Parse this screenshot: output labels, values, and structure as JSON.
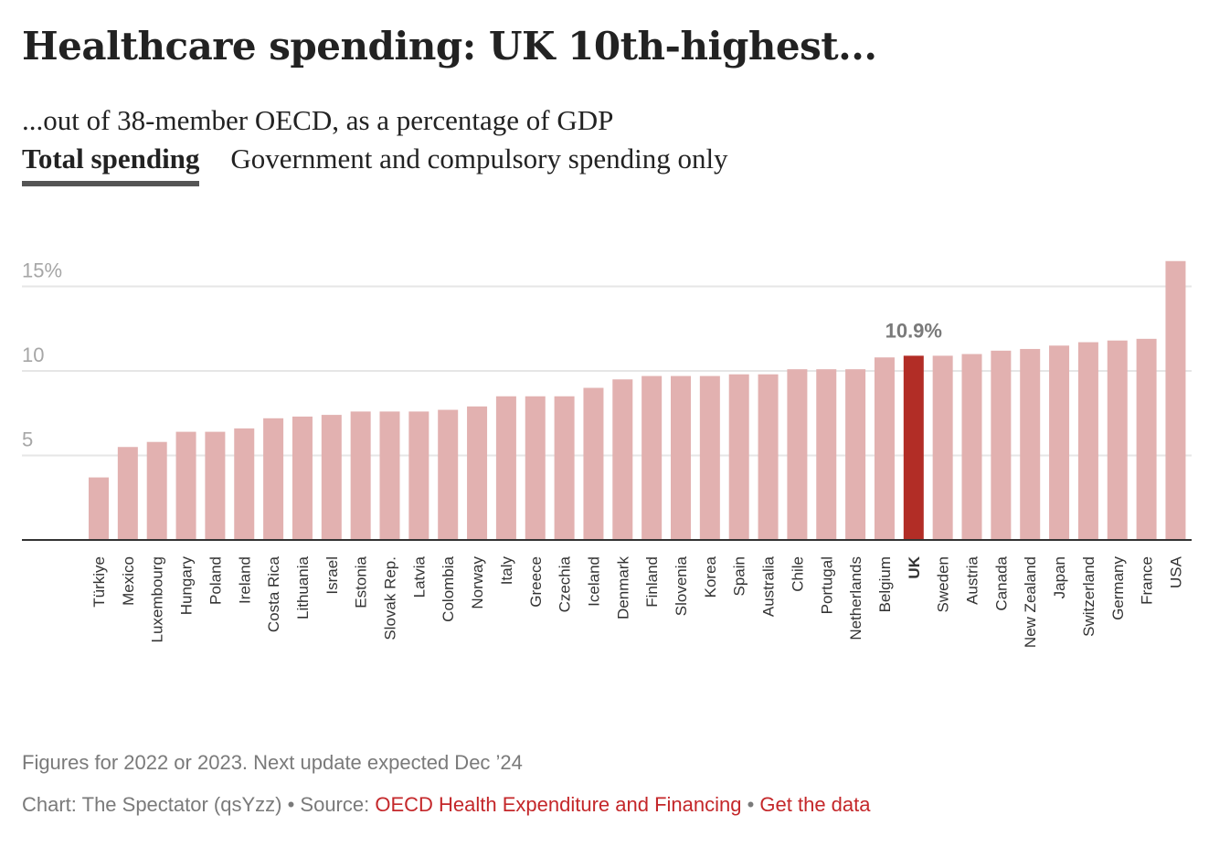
{
  "header": {
    "title": "Healthcare spending: UK 10th-highest...",
    "subtitle": "...out of 38-member OECD, as a percentage of GDP"
  },
  "tabs": [
    {
      "label": "Total spending",
      "active": true
    },
    {
      "label": "Government and compulsory spending only",
      "active": false
    }
  ],
  "colors": {
    "bar": "#e2b1b0",
    "highlight": "#b22d26",
    "gridline": "#e6e6e6",
    "axis": "#333333",
    "tick_label": "#a6a6a6",
    "annotation": "#7a7a7a",
    "link": "#c4272a"
  },
  "chart_data": {
    "type": "bar",
    "title": "Healthcare spending: UK 10th-highest...",
    "subtitle": "...out of 38-member OECD, as a percentage of GDP",
    "xlabel": "",
    "ylabel": "",
    "ylim": [
      0,
      17
    ],
    "yticks": [
      {
        "value": 5,
        "label": "5"
      },
      {
        "value": 10,
        "label": "10"
      },
      {
        "value": 15,
        "label": "15%"
      }
    ],
    "grid": true,
    "highlight": "UK",
    "annotations": [
      {
        "category": "UK",
        "text": "10.9%"
      }
    ],
    "categories": [
      "Türkiye",
      "Mexico",
      "Luxembourg",
      "Hungary",
      "Poland",
      "Ireland",
      "Costa Rica",
      "Lithuania",
      "Israel",
      "Estonia",
      "Slovak Rep.",
      "Latvia",
      "Colombia",
      "Norway",
      "Italy",
      "Greece",
      "Czechia",
      "Iceland",
      "Denmark",
      "Finland",
      "Slovenia",
      "Korea",
      "Spain",
      "Australia",
      "Chile",
      "Portugal",
      "Netherlands",
      "Belgium",
      "UK",
      "Sweden",
      "Austria",
      "Canada",
      "New Zealand",
      "Japan",
      "Switzerland",
      "Germany",
      "France",
      "USA"
    ],
    "values": [
      3.7,
      5.5,
      5.8,
      6.4,
      6.4,
      6.6,
      7.2,
      7.3,
      7.4,
      7.6,
      7.6,
      7.6,
      7.7,
      7.9,
      8.5,
      8.5,
      8.5,
      9.0,
      9.5,
      9.7,
      9.7,
      9.7,
      9.8,
      9.8,
      10.1,
      10.1,
      10.1,
      10.8,
      10.9,
      10.9,
      11.0,
      11.2,
      11.3,
      11.5,
      11.7,
      11.8,
      11.9,
      16.5
    ]
  },
  "footer": {
    "note": "Figures for 2022 or 2023. Next update expected Dec ’24",
    "credit_prefix": "Chart: The Spectator (qsYzz) • Source: ",
    "source_link": "OECD Health Expenditure and Financing",
    "separator": " • ",
    "data_link": "Get the data"
  }
}
